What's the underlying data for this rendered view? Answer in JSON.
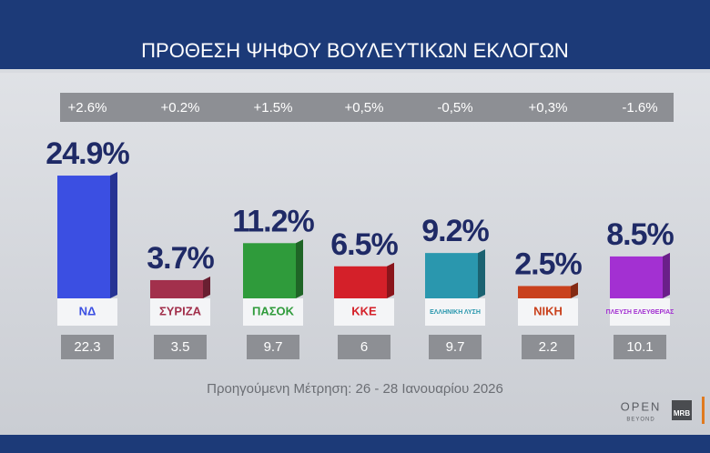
{
  "chart_data": {
    "type": "bar",
    "title": "ΠΡΟΘΕΣΗ ΨΗΦΟΥ ΒΟΥΛΕΥΤΙΚΩΝ ΕΚΛΟΓΩΝ",
    "categories": [
      "ΝΔ",
      "ΣΥΡΙΖΑ",
      "ΠΑΣΟΚ",
      "ΚΚΕ",
      "ΕΛΛΗΝΙΚΗ ΛΥΣΗ",
      "ΝΙΚΗ",
      "ΠΛΕΥΣΗ ΕΛΕΥΘΕΡΙΑΣ"
    ],
    "values": [
      24.9,
      3.7,
      11.2,
      6.5,
      9.2,
      2.5,
      8.5
    ],
    "value_labels": [
      "24.9%",
      "3.7%",
      "11.2%",
      "6.5%",
      "9.2%",
      "2.5%",
      "8.5%"
    ],
    "colors": [
      "#3b4fe2",
      "#a2304c",
      "#2f9b3b",
      "#d42029",
      "#2a97ae",
      "#c9411d",
      "#a330d2"
    ],
    "changes": [
      {
        "value": 2.6,
        "label": "+2.6%"
      },
      {
        "value": 0.2,
        "label": "+0.2%"
      },
      {
        "value": 1.5,
        "label": "+1.5%"
      },
      {
        "value": 0.5,
        "label": "+0,5%"
      },
      {
        "value": -0.5,
        "label": "-0,5%"
      },
      {
        "value": 0.3,
        "label": "+0,3%"
      },
      {
        "value": -1.6,
        "label": "-1.6%"
      }
    ],
    "previous": [
      22.3,
      3.5,
      9.7,
      6,
      9.7,
      2.2,
      10.1
    ],
    "footnote": "Προηγούμενη Μέτρηση: 26 - 28 Ιανουαρίου 2026",
    "brand": "OPEN",
    "brand_sub": "BEYOND",
    "pollster": "MRB"
  }
}
